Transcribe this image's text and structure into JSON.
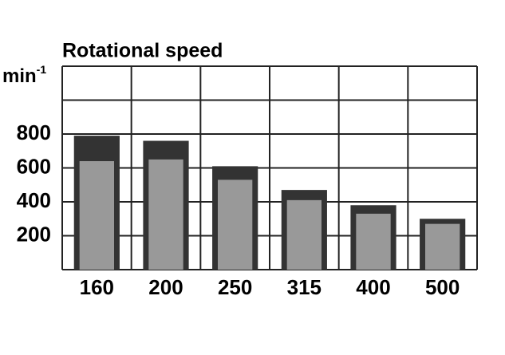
{
  "chart_data": {
    "type": "bar",
    "title": "Rotational speed",
    "y_label": "min",
    "y_label_exponent": "-1",
    "categories": [
      "160",
      "200",
      "250",
      "315",
      "400",
      "500"
    ],
    "series": [
      {
        "color": "#333333",
        "values": [
          790,
          760,
          610,
          470,
          380,
          300
        ]
      },
      {
        "color": "#999999",
        "values": [
          640,
          650,
          530,
          410,
          330,
          270
        ]
      }
    ],
    "ylim": [
      0,
      1200
    ],
    "yticks": [
      200,
      400,
      600,
      800
    ],
    "grid_lines": [
      200,
      400,
      600,
      800,
      1000
    ],
    "grid": true
  }
}
